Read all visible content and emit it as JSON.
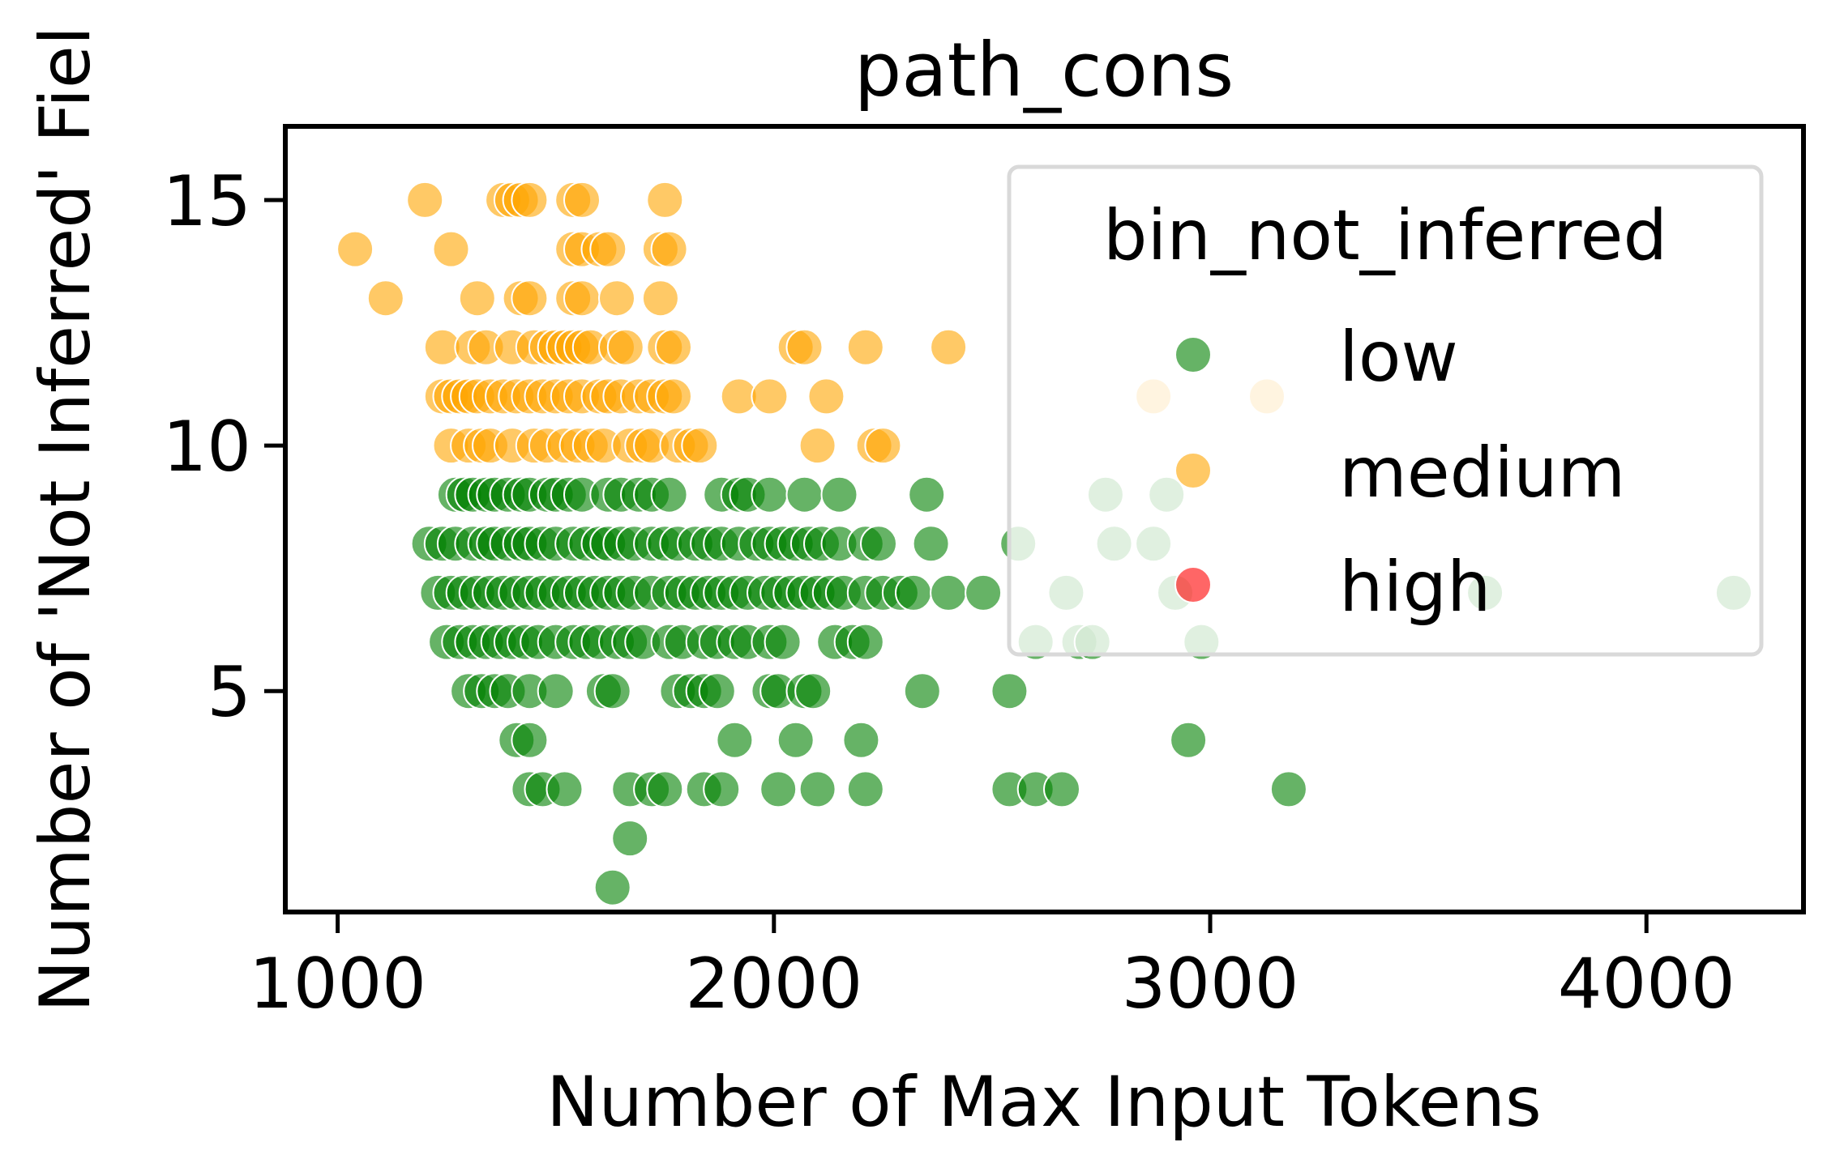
{
  "chart_data": {
    "type": "scatter",
    "title": "path_cons",
    "xlabel": "Number of Max Input Tokens",
    "ylabel": "Number of 'Not Inferred' Fiel",
    "xlim": [
      880,
      4360
    ],
    "ylim": [
      0.5,
      16.5
    ],
    "xticks": [
      1000,
      2000,
      3000,
      4000
    ],
    "xtick_labels": [
      "1000",
      "2000",
      "3000",
      "4000"
    ],
    "yticks": [
      5,
      10,
      15
    ],
    "ytick_labels": [
      "5",
      "10",
      "15"
    ],
    "grid": false,
    "legend": {
      "title": "bin_not_inferred",
      "placement": "top-right",
      "entries": [
        {
          "label": "low",
          "color": "#008000"
        },
        {
          "label": "medium",
          "color": "#ffa500"
        },
        {
          "label": "high",
          "color": "#ff0000"
        }
      ]
    },
    "series": [
      {
        "name": "medium",
        "color": "#ffa500",
        "points": [
          [
            1200,
            15
          ],
          [
            1380,
            15
          ],
          [
            1400,
            15
          ],
          [
            1420,
            15
          ],
          [
            1440,
            15
          ],
          [
            1540,
            15
          ],
          [
            1560,
            15
          ],
          [
            1750,
            15
          ],
          [
            1040,
            14
          ],
          [
            1260,
            14
          ],
          [
            1540,
            14
          ],
          [
            1560,
            14
          ],
          [
            1600,
            14
          ],
          [
            1620,
            14
          ],
          [
            1740,
            14
          ],
          [
            1760,
            14
          ],
          [
            1110,
            13
          ],
          [
            1320,
            13
          ],
          [
            1420,
            13
          ],
          [
            1440,
            13
          ],
          [
            1540,
            13
          ],
          [
            1560,
            13
          ],
          [
            1640,
            13
          ],
          [
            1740,
            13
          ],
          [
            1240,
            12
          ],
          [
            1310,
            12
          ],
          [
            1340,
            12
          ],
          [
            1400,
            12
          ],
          [
            1450,
            12
          ],
          [
            1480,
            12
          ],
          [
            1500,
            12
          ],
          [
            1520,
            12
          ],
          [
            1540,
            12
          ],
          [
            1560,
            12
          ],
          [
            1580,
            12
          ],
          [
            1640,
            12
          ],
          [
            1660,
            12
          ],
          [
            1750,
            12
          ],
          [
            1770,
            12
          ],
          [
            2050,
            12
          ],
          [
            2070,
            12
          ],
          [
            2210,
            12
          ],
          [
            2400,
            12
          ],
          [
            1240,
            11
          ],
          [
            1260,
            11
          ],
          [
            1280,
            11
          ],
          [
            1300,
            11
          ],
          [
            1320,
            11
          ],
          [
            1350,
            11
          ],
          [
            1380,
            11
          ],
          [
            1410,
            11
          ],
          [
            1440,
            11
          ],
          [
            1470,
            11
          ],
          [
            1500,
            11
          ],
          [
            1530,
            11
          ],
          [
            1560,
            11
          ],
          [
            1600,
            11
          ],
          [
            1620,
            11
          ],
          [
            1650,
            11
          ],
          [
            1690,
            11
          ],
          [
            1720,
            11
          ],
          [
            1750,
            11
          ],
          [
            1770,
            11
          ],
          [
            1920,
            11
          ],
          [
            1990,
            11
          ],
          [
            2120,
            11
          ],
          [
            2870,
            11
          ],
          [
            3130,
            11
          ],
          [
            1260,
            10
          ],
          [
            1300,
            10
          ],
          [
            1330,
            10
          ],
          [
            1350,
            10
          ],
          [
            1400,
            10
          ],
          [
            1450,
            10
          ],
          [
            1480,
            10
          ],
          [
            1520,
            10
          ],
          [
            1550,
            10
          ],
          [
            1580,
            10
          ],
          [
            1610,
            10
          ],
          [
            1670,
            10
          ],
          [
            1700,
            10
          ],
          [
            1720,
            10
          ],
          [
            1780,
            10
          ],
          [
            1810,
            10
          ],
          [
            1830,
            10
          ],
          [
            2100,
            10
          ],
          [
            2230,
            10
          ],
          [
            2250,
            10
          ]
        ]
      },
      {
        "name": "low",
        "color": "#008000",
        "points": [
          [
            1270,
            9
          ],
          [
            1290,
            9
          ],
          [
            1310,
            9
          ],
          [
            1340,
            9
          ],
          [
            1360,
            9
          ],
          [
            1390,
            9
          ],
          [
            1420,
            9
          ],
          [
            1440,
            9
          ],
          [
            1480,
            9
          ],
          [
            1500,
            9
          ],
          [
            1530,
            9
          ],
          [
            1560,
            9
          ],
          [
            1620,
            9
          ],
          [
            1650,
            9
          ],
          [
            1690,
            9
          ],
          [
            1720,
            9
          ],
          [
            1760,
            9
          ],
          [
            1880,
            9
          ],
          [
            1920,
            9
          ],
          [
            1940,
            9
          ],
          [
            1990,
            9
          ],
          [
            2070,
            9
          ],
          [
            2150,
            9
          ],
          [
            2350,
            9
          ],
          [
            2760,
            9
          ],
          [
            2900,
            9
          ],
          [
            1210,
            8
          ],
          [
            1240,
            8
          ],
          [
            1270,
            8
          ],
          [
            1310,
            8
          ],
          [
            1340,
            8
          ],
          [
            1360,
            8
          ],
          [
            1390,
            8
          ],
          [
            1420,
            8
          ],
          [
            1440,
            8
          ],
          [
            1470,
            8
          ],
          [
            1500,
            8
          ],
          [
            1540,
            8
          ],
          [
            1570,
            8
          ],
          [
            1600,
            8
          ],
          [
            1620,
            8
          ],
          [
            1650,
            8
          ],
          [
            1680,
            8
          ],
          [
            1720,
            8
          ],
          [
            1750,
            8
          ],
          [
            1780,
            8
          ],
          [
            1820,
            8
          ],
          [
            1850,
            8
          ],
          [
            1880,
            8
          ],
          [
            1920,
            8
          ],
          [
            1960,
            8
          ],
          [
            1990,
            8
          ],
          [
            2020,
            8
          ],
          [
            2050,
            8
          ],
          [
            2080,
            8
          ],
          [
            2110,
            8
          ],
          [
            2150,
            8
          ],
          [
            2210,
            8
          ],
          [
            2240,
            8
          ],
          [
            2360,
            8
          ],
          [
            2560,
            8
          ],
          [
            2780,
            8
          ],
          [
            2870,
            8
          ],
          [
            1230,
            7
          ],
          [
            1260,
            7
          ],
          [
            1290,
            7
          ],
          [
            1320,
            7
          ],
          [
            1350,
            7
          ],
          [
            1380,
            7
          ],
          [
            1410,
            7
          ],
          [
            1440,
            7
          ],
          [
            1470,
            7
          ],
          [
            1500,
            7
          ],
          [
            1530,
            7
          ],
          [
            1560,
            7
          ],
          [
            1590,
            7
          ],
          [
            1620,
            7
          ],
          [
            1650,
            7
          ],
          [
            1680,
            7
          ],
          [
            1720,
            7
          ],
          [
            1760,
            7
          ],
          [
            1790,
            7
          ],
          [
            1820,
            7
          ],
          [
            1850,
            7
          ],
          [
            1880,
            7
          ],
          [
            1910,
            7
          ],
          [
            1940,
            7
          ],
          [
            1980,
            7
          ],
          [
            2010,
            7
          ],
          [
            2040,
            7
          ],
          [
            2070,
            7
          ],
          [
            2100,
            7
          ],
          [
            2130,
            7
          ],
          [
            2160,
            7
          ],
          [
            2210,
            7
          ],
          [
            2250,
            7
          ],
          [
            2290,
            7
          ],
          [
            2320,
            7
          ],
          [
            2400,
            7
          ],
          [
            2480,
            7
          ],
          [
            2670,
            7
          ],
          [
            2920,
            7
          ],
          [
            3630,
            7
          ],
          [
            4200,
            7
          ],
          [
            1250,
            6
          ],
          [
            1280,
            6
          ],
          [
            1310,
            6
          ],
          [
            1340,
            6
          ],
          [
            1370,
            6
          ],
          [
            1400,
            6
          ],
          [
            1430,
            6
          ],
          [
            1460,
            6
          ],
          [
            1500,
            6
          ],
          [
            1540,
            6
          ],
          [
            1570,
            6
          ],
          [
            1600,
            6
          ],
          [
            1640,
            6
          ],
          [
            1670,
            6
          ],
          [
            1700,
            6
          ],
          [
            1760,
            6
          ],
          [
            1790,
            6
          ],
          [
            1840,
            6
          ],
          [
            1870,
            6
          ],
          [
            1910,
            6
          ],
          [
            1940,
            6
          ],
          [
            1990,
            6
          ],
          [
            2020,
            6
          ],
          [
            2140,
            6
          ],
          [
            2180,
            6
          ],
          [
            2210,
            6
          ],
          [
            2600,
            6
          ],
          [
            2700,
            6
          ],
          [
            2730,
            6
          ],
          [
            2980,
            6
          ],
          [
            1300,
            5
          ],
          [
            1330,
            5
          ],
          [
            1360,
            5
          ],
          [
            1390,
            5
          ],
          [
            1440,
            5
          ],
          [
            1500,
            5
          ],
          [
            1610,
            5
          ],
          [
            1630,
            5
          ],
          [
            1780,
            5
          ],
          [
            1810,
            5
          ],
          [
            1840,
            5
          ],
          [
            1870,
            5
          ],
          [
            1990,
            5
          ],
          [
            2010,
            5
          ],
          [
            2070,
            5
          ],
          [
            2090,
            5
          ],
          [
            2340,
            5
          ],
          [
            2540,
            5
          ],
          [
            1410,
            4
          ],
          [
            1440,
            4
          ],
          [
            1910,
            4
          ],
          [
            2050,
            4
          ],
          [
            2200,
            4
          ],
          [
            2950,
            4
          ],
          [
            1440,
            3
          ],
          [
            1470,
            3
          ],
          [
            1520,
            3
          ],
          [
            1670,
            3
          ],
          [
            1720,
            3
          ],
          [
            1750,
            3
          ],
          [
            1840,
            3
          ],
          [
            1880,
            3
          ],
          [
            2010,
            3
          ],
          [
            2100,
            3
          ],
          [
            2210,
            3
          ],
          [
            2540,
            3
          ],
          [
            2600,
            3
          ],
          [
            2660,
            3
          ],
          [
            3180,
            3
          ],
          [
            1670,
            2
          ],
          [
            1630,
            1
          ]
        ]
      },
      {
        "name": "high",
        "color": "#ff0000",
        "points": []
      }
    ]
  }
}
